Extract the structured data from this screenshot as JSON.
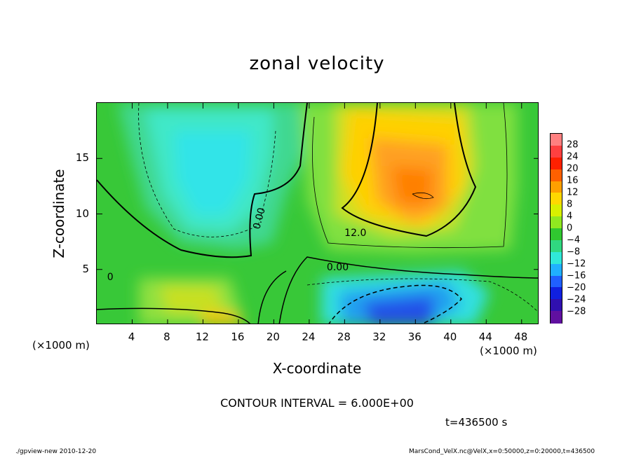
{
  "chart_data": {
    "type": "heatmap",
    "title": "zonal velocity",
    "xlabel": "X-coordinate",
    "ylabel": "Z-coordinate",
    "x_unit": "(×1000 m)",
    "x_ticks": [
      4,
      8,
      12,
      16,
      20,
      24,
      28,
      32,
      36,
      40,
      44,
      48
    ],
    "y_ticks": [
      5,
      10,
      15
    ],
    "xlim": [
      0,
      50
    ],
    "ylim": [
      0,
      20
    ],
    "colorbar_ticks": [
      28,
      24,
      20,
      16,
      12,
      8,
      4,
      0,
      -4,
      -8,
      -12,
      -16,
      -20,
      -24,
      -28
    ],
    "contour_labels": [
      {
        "text": "0.00",
        "x": 18.5,
        "z": 9.5
      },
      {
        "text": "12.0",
        "x": 29.3,
        "z": 8.2
      },
      {
        "text": "0.00",
        "x": 27.3,
        "z": 5.1
      },
      {
        "text": "0",
        "x": 1.6,
        "z": 4.2
      }
    ],
    "features": [
      {
        "kind": "max",
        "x": 36,
        "z": 12,
        "value": 18
      },
      {
        "kind": "min",
        "x": 12,
        "z": 15,
        "value": -10
      },
      {
        "kind": "min",
        "x": 36,
        "z": 2,
        "value": -16
      },
      {
        "kind": "max",
        "x": 14,
        "z": 0.5,
        "value": 14
      }
    ],
    "contour_interval": "CONTOUR INTERVAL = 6.000E+00",
    "time": "t=436500 s",
    "colors": {
      "negative": "#2040ff",
      "zero": "#30c030",
      "positive": "#ff7000"
    }
  },
  "footer": {
    "left": "./gpview-new  2010-12-20",
    "right": "MarsCond_VelX.nc@VelX,x=0:50000,z=0:20000,t=436500"
  }
}
